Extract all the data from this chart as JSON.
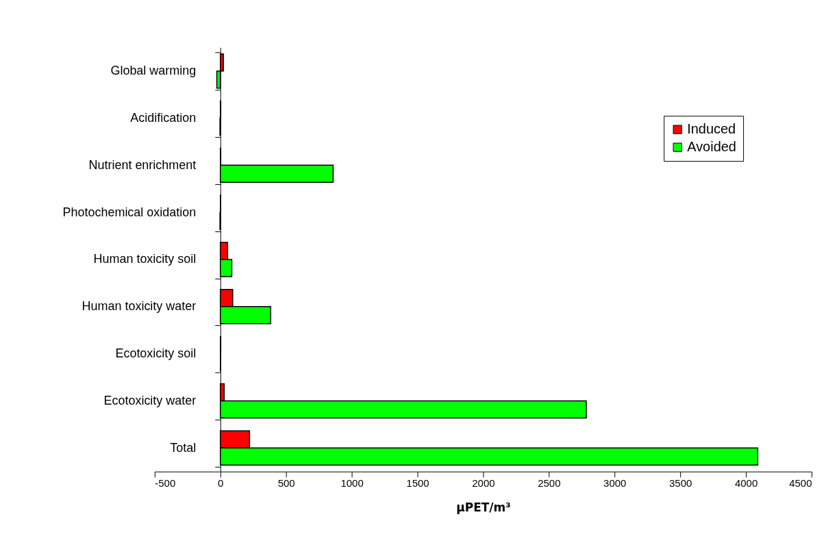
{
  "chart_data": {
    "type": "bar",
    "orientation": "horizontal",
    "xlabel": "µPET/m³",
    "categories": [
      "Global warming",
      "Acidification",
      "Nutrient enrichment",
      "Photochemical oxidation",
      "Human toxicity soil",
      "Human toxicity water",
      "Ecotoxicity soil",
      "Ecotoxicity water",
      "Total"
    ],
    "series": [
      {
        "name": "Induced",
        "color": "#ff0000",
        "values": [
          23,
          3,
          3,
          2,
          55,
          94,
          3,
          29,
          222
        ]
      },
      {
        "name": "Avoided",
        "color": "#00ff00",
        "values": [
          -27,
          -3,
          858,
          -3,
          87,
          383,
          2,
          2785,
          4090
        ]
      }
    ],
    "xlim": [
      -500,
      4500
    ],
    "xticks": [
      -500,
      0,
      500,
      1000,
      1500,
      2000,
      2500,
      3000,
      3500,
      4000,
      4500
    ],
    "grid": false,
    "legend": "top right"
  }
}
